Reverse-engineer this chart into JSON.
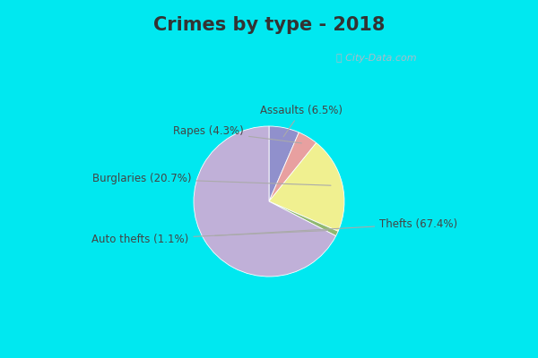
{
  "title": "Crimes by type - 2018",
  "ordered_labels": [
    "Assaults",
    "Rapes",
    "Burglaries",
    "Auto thefts",
    "Thefts"
  ],
  "ordered_sizes": [
    6.5,
    4.3,
    20.7,
    1.1,
    67.4
  ],
  "ordered_colors": [
    "#9090cc",
    "#e8a0a0",
    "#f0f090",
    "#90b870",
    "#c0b0d8"
  ],
  "startangle": 90,
  "counterclock": false,
  "background_cyan": "#00e8f0",
  "background_main_tl": "#c8e8d8",
  "background_main_br": "#e8f0f8",
  "title_fontsize": 15,
  "label_fontsize": 8.5,
  "watermark": "ⓘ City-Data.com",
  "title_color": "#333333",
  "label_color": "#444444",
  "annotations": [
    {
      "label": "Assaults (6.5%)",
      "ha": "center",
      "va": "bottom"
    },
    {
      "label": "Rapes (4.3%)",
      "ha": "right",
      "va": "center"
    },
    {
      "label": "Burglaries (20.7%)",
      "ha": "right",
      "va": "center"
    },
    {
      "label": "Auto thefts (1.1%)",
      "ha": "right",
      "va": "center"
    },
    {
      "label": "Thefts (67.4%)",
      "ha": "left",
      "va": "center"
    }
  ]
}
